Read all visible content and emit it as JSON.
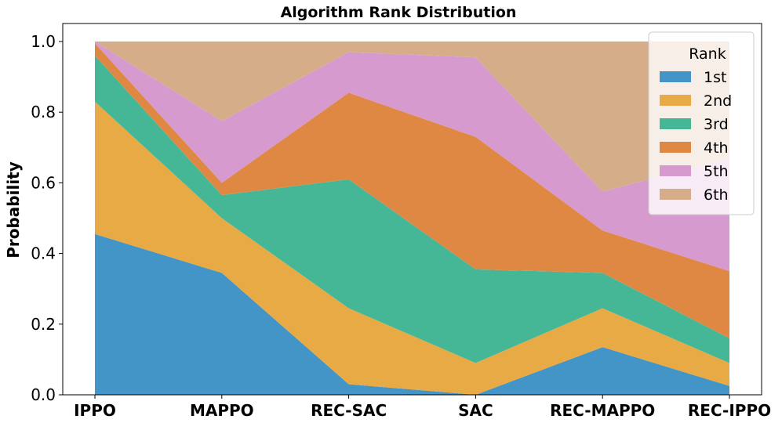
{
  "chart_data": {
    "type": "area",
    "stacked": true,
    "title": "Algorithm Rank Distribution",
    "xlabel": "",
    "ylabel": "Probability",
    "ylim": [
      0,
      1.0
    ],
    "yticks": [
      "0.0",
      "0.2",
      "0.4",
      "0.6",
      "0.8",
      "1.0"
    ],
    "categories": [
      "IPPO",
      "MAPPO",
      "REC-SAC",
      "SAC",
      "REC-MAPPO",
      "REC-IPPO"
    ],
    "grid": false,
    "legend": {
      "title": "Rank",
      "placement": "top-right"
    },
    "series": [
      {
        "name": "1st",
        "color": "#4394c7",
        "values": [
          0.455,
          0.345,
          0.03,
          0.0,
          0.135,
          0.025
        ]
      },
      {
        "name": "2nd",
        "color": "#e8aa44",
        "values": [
          0.375,
          0.155,
          0.215,
          0.09,
          0.11,
          0.065
        ]
      },
      {
        "name": "3rd",
        "color": "#45b797",
        "values": [
          0.13,
          0.065,
          0.365,
          0.265,
          0.1,
          0.07
        ]
      },
      {
        "name": "4th",
        "color": "#df8843",
        "values": [
          0.035,
          0.035,
          0.245,
          0.375,
          0.12,
          0.19
        ]
      },
      {
        "name": "5th",
        "color": "#d69ace",
        "values": [
          0.005,
          0.175,
          0.115,
          0.225,
          0.11,
          0.32
        ]
      },
      {
        "name": "6th",
        "color": "#d5ad89",
        "values": [
          0.0,
          0.225,
          0.03,
          0.045,
          0.425,
          0.33
        ]
      }
    ]
  }
}
